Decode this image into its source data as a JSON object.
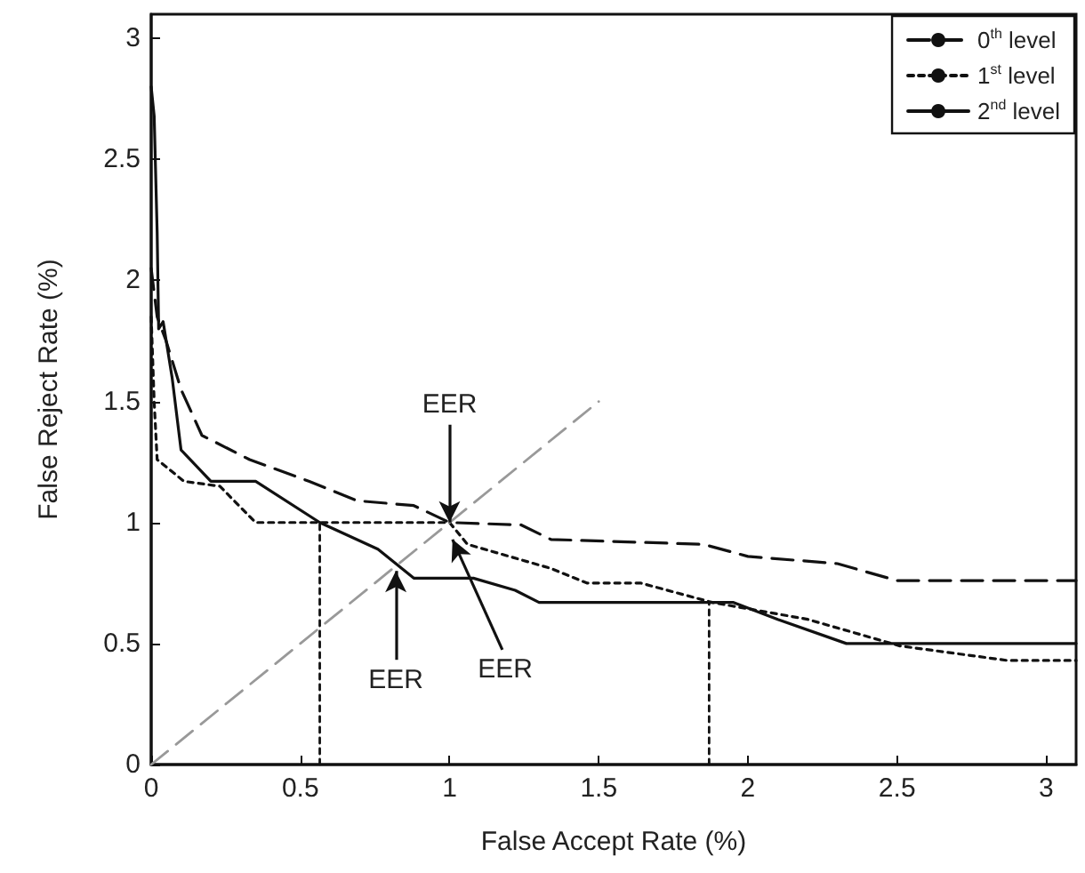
{
  "chart_data": {
    "type": "line",
    "xlabel": "False Accept Rate (%)",
    "ylabel": "False Reject Rate (%)",
    "xlim": [
      0,
      3.1
    ],
    "xticks": [
      0,
      0.5,
      1,
      1.5,
      2,
      2.5,
      3
    ],
    "ylim": [
      0,
      3.1
    ],
    "yticks": [
      0,
      0.5,
      1,
      1.5,
      2,
      2.5,
      3
    ],
    "grid": false,
    "legend": "top right",
    "marker": "none",
    "series": [
      {
        "name": "0$^{th}$ level",
        "color": "#111111",
        "line_style": "dashed",
        "x": [
          0,
          0.02,
          0.05,
          0.1,
          0.17,
          0.33,
          0.53,
          0.69,
          0.88,
          1.0,
          1.24,
          1.34,
          1.85,
          2.0,
          2.3,
          2.5,
          3.1
        ],
        "values": [
          2.05,
          1.85,
          1.75,
          1.55,
          1.36,
          1.26,
          1.17,
          1.09,
          1.07,
          1.0,
          0.99,
          0.93,
          0.91,
          0.86,
          0.83,
          0.76,
          0.76
        ]
      },
      {
        "name": "1$^{st}$ level",
        "color": "#111111",
        "line_style": "dotted",
        "x": [
          0,
          0.01,
          0.02,
          0.11,
          0.23,
          0.35,
          1.0,
          1.06,
          1.34,
          1.46,
          1.64,
          1.88,
          2.2,
          2.51,
          2.87,
          3.1
        ],
        "values": [
          1.85,
          1.5,
          1.26,
          1.17,
          1.15,
          1.0,
          1.0,
          0.91,
          0.81,
          0.75,
          0.75,
          0.67,
          0.6,
          0.49,
          0.43,
          0.43
        ]
      },
      {
        "name": "2$^{nd}$ level",
        "color": "#111111",
        "line_style": "solid",
        "x": [
          0,
          0.01,
          0.02,
          0.025,
          0.04,
          0.07,
          0.1,
          0.2,
          0.35,
          0.565,
          0.76,
          0.88,
          1.08,
          1.22,
          1.3,
          1.95,
          2.1,
          2.33,
          3.1
        ],
        "values": [
          2.8,
          2.68,
          2.2,
          1.8,
          1.83,
          1.6,
          1.3,
          1.17,
          1.17,
          1.0,
          0.89,
          0.77,
          0.77,
          0.72,
          0.67,
          0.67,
          0.6,
          0.5,
          0.5
        ]
      },
      {
        "color": "#999999",
        "line_style": "dashed",
        "x": [
          0,
          1.5
        ],
        "values": [
          0,
          1.5
        ]
      },
      {
        "color": "#111111",
        "line_style": "dotted",
        "x": [
          0.565,
          0.565
        ],
        "values": [
          0,
          1.0
        ]
      },
      {
        "color": "#111111",
        "line_style": "dotted",
        "x": [
          1.87,
          1.87
        ],
        "values": [
          0,
          0.67
        ]
      }
    ],
    "annotations": [
      {
        "text": "EER",
        "x": 1.0,
        "y": 1.0
      },
      {
        "text": "EER",
        "x": 0.82,
        "y": 0.8
      },
      {
        "text": "EER",
        "x": 1.01,
        "y": 0.93
      }
    ]
  }
}
